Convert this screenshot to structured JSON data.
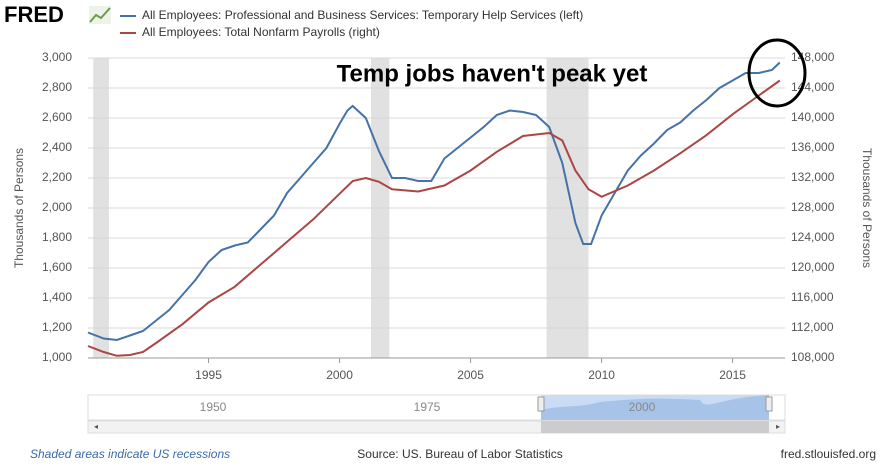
{
  "logo": "FRED",
  "chart_data": {
    "type": "line",
    "annotation": "Temp jobs haven't peak yet",
    "ylabel": "Thousands of Persons",
    "y2label": "Thousands of Persons",
    "xlim": [
      1990.4,
      2017.0
    ],
    "xticks": [
      1995,
      2000,
      2005,
      2010,
      2015
    ],
    "ylim": [
      1000,
      3000
    ],
    "yticks": [
      {
        "value": 1000,
        "label": "1,000"
      },
      {
        "value": 1200,
        "label": "1,200"
      },
      {
        "value": 1400,
        "label": "1,400"
      },
      {
        "value": 1600,
        "label": "1,600"
      },
      {
        "value": 1800,
        "label": "1,800"
      },
      {
        "value": 2000,
        "label": "2,000"
      },
      {
        "value": 2200,
        "label": "2,200"
      },
      {
        "value": 2400,
        "label": "2,400"
      },
      {
        "value": 2600,
        "label": "2,600"
      },
      {
        "value": 2800,
        "label": "2,800"
      },
      {
        "value": 3000,
        "label": "3,000"
      }
    ],
    "y2lim": [
      108000,
      148000
    ],
    "y2ticks": [
      {
        "value": 108000,
        "label": "108,000"
      },
      {
        "value": 112000,
        "label": "112,000"
      },
      {
        "value": 116000,
        "label": "116,000"
      },
      {
        "value": 120000,
        "label": "120,000"
      },
      {
        "value": 124000,
        "label": "124,000"
      },
      {
        "value": 128000,
        "label": "128,000"
      },
      {
        "value": 132000,
        "label": "132,000"
      },
      {
        "value": 136000,
        "label": "136,000"
      },
      {
        "value": 140000,
        "label": "140,000"
      },
      {
        "value": 144000,
        "label": "144,000"
      },
      {
        "value": 148000,
        "label": "148,000"
      }
    ],
    "grid": true,
    "recessions": [
      [
        1990.6,
        1991.2
      ],
      [
        2001.2,
        2001.9
      ],
      [
        2007.9,
        2009.5
      ]
    ],
    "series": [
      {
        "name": "All Employees: Professional and Business Services: Temporary Help Services (left)",
        "color": "#4572a7",
        "x": [
          1990.4,
          1991,
          1991.5,
          1992,
          1992.5,
          1993,
          1993.5,
          1994,
          1994.5,
          1995,
          1995.5,
          1996,
          1996.5,
          1997,
          1997.5,
          1998,
          1998.5,
          1999,
          1999.5,
          2000,
          2000.3,
          2000.5,
          2001,
          2001.5,
          2002,
          2002.5,
          2003,
          2003.5,
          2004,
          2004.5,
          2005,
          2005.5,
          2006,
          2006.5,
          2007,
          2007.5,
          2008,
          2008.5,
          2009,
          2009.3,
          2009.6,
          2010,
          2010.5,
          2011,
          2011.5,
          2012,
          2012.5,
          2013,
          2013.5,
          2014,
          2014.5,
          2015,
          2015.5,
          2016,
          2016.5,
          2016.8
        ],
        "values": [
          1170,
          1130,
          1120,
          1150,
          1180,
          1250,
          1320,
          1420,
          1520,
          1640,
          1720,
          1750,
          1770,
          1860,
          1950,
          2100,
          2200,
          2300,
          2400,
          2560,
          2650,
          2680,
          2600,
          2380,
          2200,
          2200,
          2180,
          2180,
          2330,
          2400,
          2470,
          2540,
          2620,
          2650,
          2640,
          2620,
          2540,
          2300,
          1900,
          1760,
          1760,
          1950,
          2100,
          2250,
          2350,
          2430,
          2520,
          2570,
          2650,
          2720,
          2800,
          2850,
          2900,
          2900,
          2920,
          2970
        ]
      },
      {
        "name": "All Employees: Total Nonfarm Payrolls (right)",
        "color": "#aa4643",
        "axis": "y2",
        "x": [
          1990.4,
          1991,
          1991.5,
          1992,
          1992.5,
          1993,
          1994,
          1995,
          1996,
          1997,
          1998,
          1999,
          2000,
          2000.5,
          2001,
          2001.5,
          2002,
          2003,
          2004,
          2005,
          2006,
          2007,
          2008,
          2008.5,
          2009,
          2009.5,
          2010,
          2011,
          2012,
          2013,
          2014,
          2015,
          2016,
          2016.8
        ],
        "values": [
          109600,
          108800,
          108300,
          108400,
          108800,
          110000,
          112500,
          115400,
          117500,
          120500,
          123500,
          126500,
          129900,
          131600,
          132000,
          131500,
          130500,
          130200,
          131000,
          133000,
          135500,
          137600,
          138000,
          137000,
          133000,
          130500,
          129500,
          131000,
          133000,
          135300,
          137700,
          140500,
          143000,
          145000
        ]
      }
    ]
  },
  "navigator": {
    "labels": [
      "1950",
      "1975",
      "2000"
    ]
  },
  "footer": {
    "note": "Shaded areas indicate US recessions",
    "source": "Source: US. Bureau of Labor Statistics",
    "site": "fred.stlouisfed.org"
  }
}
